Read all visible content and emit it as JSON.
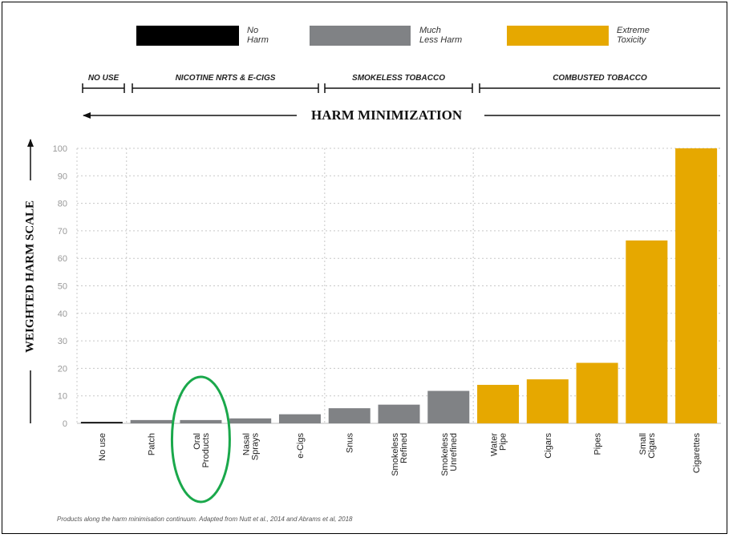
{
  "legend": [
    {
      "label": "No\nHarm",
      "color": "#000000"
    },
    {
      "label": "Much\nLess Harm",
      "color": "#808285"
    },
    {
      "label": "Extreme\nToxicity",
      "color": "#e6a800"
    }
  ],
  "category_bands": [
    "NO USE",
    "NICOTINE NRTS & E-CIGS",
    "SMOKELESS TOBACCO",
    "COMBUSTED TOBACCO"
  ],
  "harm_title": "HARM MINIMIZATION",
  "caption": "Products along the harm minimisation continuum. Adapted from Nutt et al., 2014 and Abrams et al, 2018",
  "chart_data": {
    "type": "bar",
    "title": "",
    "xlabel": "",
    "ylabel": "WEIGHTED HARM SCALE",
    "ylim": [
      0,
      100
    ],
    "yticks": [
      0,
      10,
      20,
      30,
      40,
      50,
      60,
      70,
      80,
      90,
      100
    ],
    "grid": true,
    "categories": [
      "No use",
      "Patch",
      "Oral\nProducts",
      "Nasal\nSprays",
      "e-Cigs",
      "Snus",
      "Smokeless\nRefined",
      "Smokeless\nUnrefined",
      "Water\nPipe",
      "Cigars",
      "Pipes",
      "Small\nCigars",
      "Cigarettes"
    ],
    "values": [
      0.5,
      1.2,
      1.2,
      1.8,
      3.3,
      5.5,
      6.8,
      11.8,
      14,
      16,
      22,
      66.5,
      100
    ],
    "colors": [
      "#000000",
      "#808285",
      "#808285",
      "#808285",
      "#808285",
      "#808285",
      "#808285",
      "#808285",
      "#e6a800",
      "#e6a800",
      "#e6a800",
      "#e6a800",
      "#e6a800"
    ],
    "highlighted": "Oral\nProducts"
  }
}
